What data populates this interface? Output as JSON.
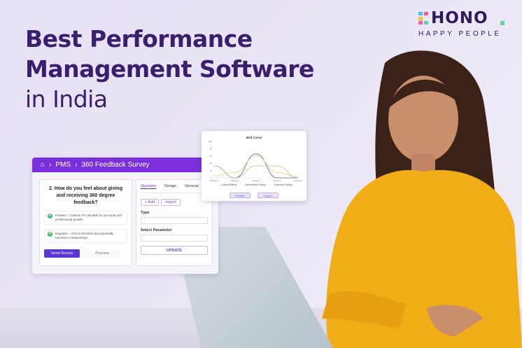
{
  "headline": {
    "line1": "Best Performance",
    "line2": "Management Software",
    "line3": "in India"
  },
  "logo": {
    "word": "HONO",
    "tagline": "HAPPY PEOPLE",
    "colors": [
      "#3ec6f0",
      "#f2c531",
      "#f0609e",
      "#5fd39a"
    ]
  },
  "survey_panel": {
    "breadcrumb": [
      "PMS",
      "360 Feedback Survey"
    ],
    "home_icon": "home-icon",
    "question": "2. How do you feel about giving and receiving 360 degree feedback?",
    "options": [
      {
        "key": "A",
        "text": "Positive - I believe it's valuable for personal and professional growth"
      },
      {
        "key": "B",
        "text": "Negative - I find it stressful and potentially harmful to relationships"
      }
    ],
    "send_label": "Send Survey",
    "preview_label": "Preview",
    "tabs": [
      "Question",
      "Design",
      "General"
    ],
    "add_label": "+ Add",
    "import_label": "Import",
    "type_label": "Type",
    "param_label": "Select Parameter",
    "update_label": "UPDATE",
    "accent": "#7b2fdc"
  },
  "chart_data": {
    "type": "line",
    "title": "Bell Curve",
    "categories": [
      "Rating 1",
      "Rating 2",
      "Rating 3",
      "Rating 4",
      "Rating 5"
    ],
    "ylim": [
      0,
      100
    ],
    "yticks": [
      0,
      20,
      40,
      60,
      80,
      100
    ],
    "series": [
      {
        "name": "Actual Rating",
        "color": "#4b63c9",
        "values": [
          33,
          0,
          66,
          0,
          0
        ]
      },
      {
        "name": "Normalized Rating",
        "color": "#9bcf7d",
        "values": [
          33,
          0,
          33,
          33,
          0
        ]
      },
      {
        "name": "Expected Rating",
        "color": "#f2cc6b",
        "values": [
          5,
          15,
          60,
          15,
          2
        ]
      }
    ],
    "publish_label": "Publish",
    "export_label": "Export"
  }
}
